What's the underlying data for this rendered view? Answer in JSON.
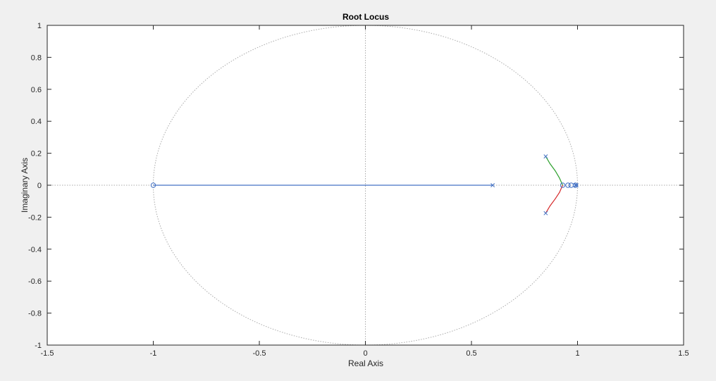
{
  "chart_data": {
    "type": "scatter",
    "title": "Root Locus",
    "xlabel": "Real Axis",
    "ylabel": "Imaginary Axis",
    "xlim": [
      -1.5,
      1.5
    ],
    "ylim": [
      -1,
      1
    ],
    "xticks": [
      "-1.5",
      "-1",
      "-0.5",
      "0",
      "0.5",
      "1",
      "1.5"
    ],
    "yticks": [
      "-1",
      "-0.8",
      "-0.6",
      "-0.4",
      "-0.2",
      "0",
      "0.2",
      "0.4",
      "0.6",
      "0.8",
      "1"
    ],
    "unit_circle": true,
    "grid": false,
    "poles": [
      {
        "x": 0.6,
        "y": 0
      },
      {
        "x": 0.85,
        "y": 0.18
      },
      {
        "x": 0.85,
        "y": -0.175
      },
      {
        "x": 0.99,
        "y": 0
      },
      {
        "x": 0.995,
        "y": 0
      }
    ],
    "zeros": [
      {
        "x": -1.0,
        "y": 0
      },
      {
        "x": 0.93,
        "y": 0
      },
      {
        "x": 0.955,
        "y": 0
      },
      {
        "x": 0.97,
        "y": 0
      },
      {
        "x": 0.99,
        "y": 0
      }
    ],
    "branches": [
      {
        "color": "#4472c4",
        "points": [
          [
            0.6,
            0
          ],
          [
            -1.0,
            0
          ]
        ]
      },
      {
        "color": "#2ca02c",
        "points": [
          [
            0.85,
            0.18
          ],
          [
            0.87,
            0.135
          ],
          [
            0.895,
            0.09
          ],
          [
            0.915,
            0.045
          ],
          [
            0.925,
            0.015
          ],
          [
            0.93,
            0
          ]
        ]
      },
      {
        "color": "#d62728",
        "points": [
          [
            0.85,
            -0.175
          ],
          [
            0.87,
            -0.13
          ],
          [
            0.895,
            -0.085
          ],
          [
            0.915,
            -0.045
          ],
          [
            0.925,
            -0.015
          ],
          [
            0.93,
            0
          ]
        ]
      }
    ],
    "colors": {
      "figure_bg": "#f0f0f0",
      "axes_bg": "#ffffff",
      "axes_border": "#262626",
      "guide": "#aaaaaa",
      "marker": "#4472c4"
    }
  }
}
